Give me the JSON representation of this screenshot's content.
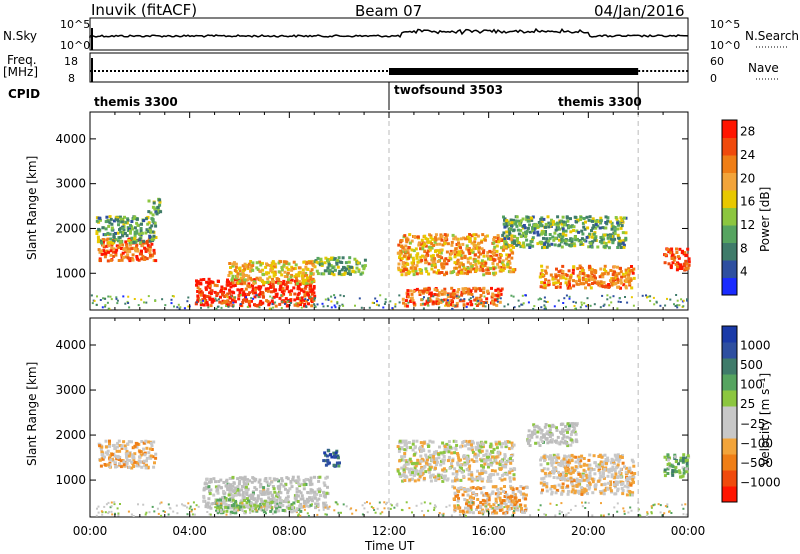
{
  "header": {
    "radar": "Inuvik (fitACF)",
    "beam": "Beam 07",
    "date": "04/Jan/2016"
  },
  "strip_labels": {
    "nsky": "N.Sky",
    "nsky_ticks": [
      "10^5",
      "10^0"
    ],
    "nsearch": "N.Search",
    "nsearch_right_ticks": [
      "10^5",
      "10^0"
    ],
    "freq_line1": "Freq.",
    "freq_line2": "[MHz]",
    "freq_ticks": [
      "18",
      "8"
    ],
    "nave": "Nave",
    "nave_ticks": [
      "60",
      "0"
    ],
    "cpid": "CPID"
  },
  "cpid_segments": [
    {
      "label": "themis 3300",
      "start_h": 0
    },
    {
      "label": "twofsound 3503",
      "start_h": 12
    },
    {
      "label": "themis 3300",
      "start_h": 22
    }
  ],
  "cpid_boundaries_h": [
    12,
    22
  ],
  "colors": {
    "power": [
      "#1a2bff",
      "#2e4fa0",
      "#3f7b6a",
      "#56a460",
      "#8cc63f",
      "#e8c800",
      "#f2a43a",
      "#ef7e16",
      "#f04a0c",
      "#ff1500"
    ],
    "velocity": [
      "#ff1500",
      "#f04a0c",
      "#ef7e16",
      "#f2a43a",
      "#c8c8c8",
      "#c8c8c8",
      "#8cc63f",
      "#56a460",
      "#3f7b6a",
      "#2e4fa0",
      "#1a3aa8"
    ],
    "ground_scatter": "#bdbdbd"
  },
  "chart_data": [
    {
      "type": "heatmap",
      "name": "power",
      "ylabel": "Slant Range [km]",
      "yticks": [
        1000,
        2000,
        3000,
        4000
      ],
      "ylim": [
        180,
        4600
      ],
      "xlim": [
        0,
        24
      ],
      "colorbar_label": "Power [dB]",
      "colorbar_ticks": [
        "4",
        "8",
        "12",
        "16",
        "20",
        "24",
        "28"
      ],
      "colorbar_range": [
        0,
        30
      ],
      "blobs": [
        {
          "t0": 0.3,
          "t1": 2.6,
          "r0": 1300,
          "r1": 1800,
          "v": 24
        },
        {
          "t0": 0.2,
          "t1": 2.6,
          "r0": 1700,
          "r1": 2300,
          "v": 11
        },
        {
          "t0": 2.3,
          "t1": 2.8,
          "r0": 2300,
          "r1": 2700,
          "v": 10
        },
        {
          "t0": 4.2,
          "t1": 9.0,
          "r0": 300,
          "r1": 900,
          "v": 28
        },
        {
          "t0": 5.5,
          "t1": 9.0,
          "r0": 800,
          "r1": 1300,
          "v": 18
        },
        {
          "t0": 9.0,
          "t1": 11.0,
          "r0": 1000,
          "r1": 1400,
          "v": 12
        },
        {
          "t0": 12.3,
          "t1": 17.0,
          "r0": 1000,
          "r1": 1900,
          "v": 20
        },
        {
          "t0": 12.5,
          "t1": 16.5,
          "r0": 300,
          "r1": 700,
          "v": 24
        },
        {
          "t0": 16.5,
          "t1": 21.5,
          "r0": 1600,
          "r1": 2300,
          "v": 11
        },
        {
          "t0": 18.0,
          "t1": 21.8,
          "r0": 700,
          "r1": 1200,
          "v": 22
        },
        {
          "t0": 23.0,
          "t1": 24.0,
          "r0": 1100,
          "r1": 1600,
          "v": 27
        }
      ]
    },
    {
      "type": "heatmap",
      "name": "velocity",
      "ylabel": "Slant Range [km]",
      "yticks": [
        1000,
        2000,
        3000,
        4000
      ],
      "ylim": [
        180,
        4600
      ],
      "xlim": [
        0,
        24
      ],
      "xlabel": "Time UT",
      "xticks": [
        "00:00",
        "04:00",
        "08:00",
        "12:00",
        "16:00",
        "20:00",
        "00:00"
      ],
      "colorbar_label": "Velocity [m s⁻¹]",
      "colorbar_ticks": [
        "1000",
        "500",
        "100",
        "25",
        "−25",
        "−100",
        "−500",
        "−1000"
      ],
      "colorbar_range": [
        -1000,
        1000
      ],
      "blobs": [
        {
          "t0": 0.3,
          "t1": 2.6,
          "r0": 1300,
          "r1": 1900,
          "v": -250
        },
        {
          "t0": 4.5,
          "t1": 9.5,
          "r0": 400,
          "r1": 1100,
          "v": 0
        },
        {
          "t0": 5.0,
          "t1": 8.5,
          "r0": 300,
          "r1": 600,
          "v": 150
        },
        {
          "t0": 9.3,
          "t1": 10.0,
          "r0": 1300,
          "r1": 1700,
          "v": 700
        },
        {
          "t0": 12.3,
          "t1": 17.0,
          "r0": 1000,
          "r1": 1900,
          "v": -120
        },
        {
          "t0": 14.5,
          "t1": 17.5,
          "r0": 300,
          "r1": 900,
          "v": -300
        },
        {
          "t0": 17.5,
          "t1": 19.5,
          "r0": 1800,
          "r1": 2300,
          "v": 0
        },
        {
          "t0": 18.0,
          "t1": 21.8,
          "r0": 700,
          "r1": 1600,
          "v": -200
        },
        {
          "t0": 23.0,
          "t1": 24.0,
          "r0": 1100,
          "r1": 1600,
          "v": 300
        }
      ]
    }
  ]
}
